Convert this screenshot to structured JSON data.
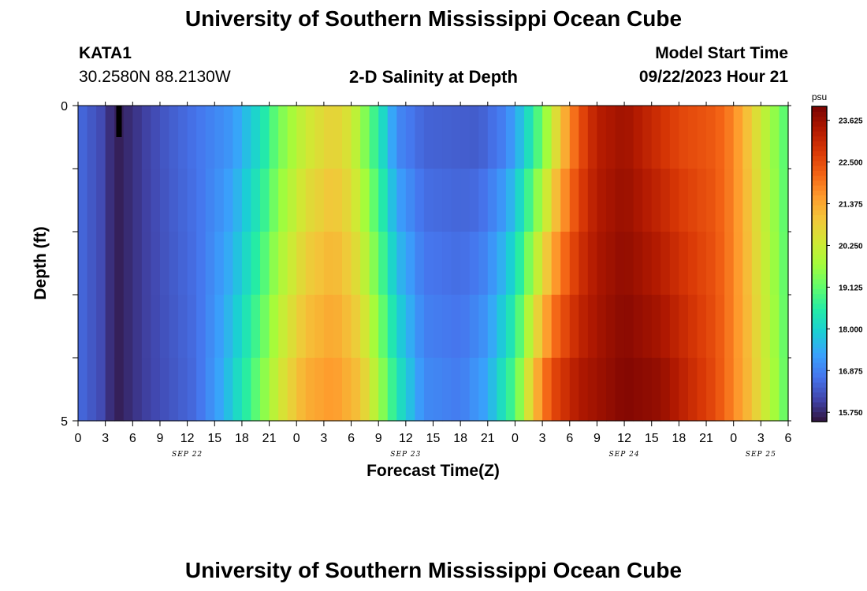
{
  "page": {
    "title_top": "University of Southern Mississippi Ocean Cube",
    "title_bottom": "University of Southern Mississippi Ocean Cube"
  },
  "station": {
    "id": "KATA1",
    "coords": "30.2580N  88.2130W"
  },
  "model": {
    "label": "Model Start Time",
    "start": "09/22/2023 Hour 21"
  },
  "chart_data": {
    "type": "heatmap",
    "title": "2-D Salinity at Depth",
    "xlabel": "Forecast Time(Z)",
    "ylabel": "Depth (ft)",
    "colorbar_unit": "psu",
    "colorbar_ticks": [
      "15.750",
      "16.875",
      "18.000",
      "19.125",
      "20.250",
      "21.375",
      "22.500",
      "23.625"
    ],
    "color_range": [
      15.5,
      24.0
    ],
    "colormap": [
      "#30123b",
      "#4145ab",
      "#4675ed",
      "#39a2fc",
      "#1bcfd4",
      "#24eca6",
      "#61fc6c",
      "#a4fc3b",
      "#d1e834",
      "#f3c63a",
      "#fe9b2d",
      "#f36315",
      "#d93806",
      "#b11901",
      "#7a0402"
    ],
    "x_tick_labels": [
      "0",
      "3",
      "6",
      "9",
      "12",
      "15",
      "18",
      "21",
      "0",
      "3",
      "6",
      "9",
      "12",
      "15",
      "18",
      "21",
      "0",
      "3",
      "6",
      "9",
      "12",
      "15",
      "18",
      "21",
      "0",
      "3",
      "6"
    ],
    "x_range_hours": [
      0,
      78
    ],
    "date_labels": [
      {
        "label": "SEP 22",
        "hour": 12
      },
      {
        "label": "SEP 23",
        "hour": 36
      },
      {
        "label": "SEP 24",
        "hour": 60
      },
      {
        "label": "SEP 25",
        "hour": 75
      }
    ],
    "y_tick_labels": [
      "0",
      "5"
    ],
    "ylim": [
      0,
      5
    ],
    "depth_levels_ft": [
      0,
      1,
      2,
      3,
      4
    ],
    "marker": {
      "hour": 4.5,
      "depth_from_ft": 0,
      "depth_to_ft": 0.5
    },
    "surface_salinity_keypoints": [
      {
        "hour": 0,
        "psu": 16.6
      },
      {
        "hour": 3,
        "psu": 16.1
      },
      {
        "hour": 4,
        "psu": 15.6
      },
      {
        "hour": 7,
        "psu": 16.0
      },
      {
        "hour": 10,
        "psu": 16.4
      },
      {
        "hour": 13,
        "psu": 16.7
      },
      {
        "hour": 17,
        "psu": 17.2
      },
      {
        "hour": 20,
        "psu": 18.2
      },
      {
        "hour": 22,
        "psu": 19.3
      },
      {
        "hour": 25,
        "psu": 20.3
      },
      {
        "hour": 28,
        "psu": 20.8
      },
      {
        "hour": 30,
        "psu": 20.4
      },
      {
        "hour": 33,
        "psu": 18.5
      },
      {
        "hour": 35,
        "psu": 17.0
      },
      {
        "hour": 38,
        "psu": 16.5
      },
      {
        "hour": 44,
        "psu": 16.4
      },
      {
        "hour": 47,
        "psu": 16.9
      },
      {
        "hour": 49,
        "psu": 17.9
      },
      {
        "hour": 51,
        "psu": 19.3
      },
      {
        "hour": 53,
        "psu": 21.0
      },
      {
        "hour": 55,
        "psu": 22.4
      },
      {
        "hour": 57,
        "psu": 23.3
      },
      {
        "hour": 60,
        "psu": 23.6
      },
      {
        "hour": 63,
        "psu": 23.1
      },
      {
        "hour": 66,
        "psu": 22.6
      },
      {
        "hour": 70,
        "psu": 22.3
      },
      {
        "hour": 72,
        "psu": 21.8
      },
      {
        "hour": 74,
        "psu": 20.8
      },
      {
        "hour": 76,
        "psu": 19.8
      },
      {
        "hour": 78,
        "psu": 18.9
      }
    ],
    "bottom_salinity_keypoints": [
      {
        "hour": 0,
        "psu": 16.6
      },
      {
        "hour": 3,
        "psu": 16.1
      },
      {
        "hour": 4,
        "psu": 15.6
      },
      {
        "hour": 7,
        "psu": 16.0
      },
      {
        "hour": 10,
        "psu": 16.3
      },
      {
        "hour": 13,
        "psu": 16.6
      },
      {
        "hour": 16,
        "psu": 17.5
      },
      {
        "hour": 19,
        "psu": 18.8
      },
      {
        "hour": 22,
        "psu": 20.3
      },
      {
        "hour": 25,
        "psu": 21.3
      },
      {
        "hour": 28,
        "psu": 21.6
      },
      {
        "hour": 31,
        "psu": 21.0
      },
      {
        "hour": 33,
        "psu": 19.8
      },
      {
        "hour": 35,
        "psu": 18.4
      },
      {
        "hour": 38,
        "psu": 17.0
      },
      {
        "hour": 42,
        "psu": 16.8
      },
      {
        "hour": 45,
        "psu": 17.4
      },
      {
        "hour": 48,
        "psu": 19.0
      },
      {
        "hour": 50,
        "psu": 21.0
      },
      {
        "hour": 52,
        "psu": 22.5
      },
      {
        "hour": 55,
        "psu": 23.4
      },
      {
        "hour": 60,
        "psu": 23.9
      },
      {
        "hour": 64,
        "psu": 23.7
      },
      {
        "hour": 67,
        "psu": 23.1
      },
      {
        "hour": 70,
        "psu": 22.5
      },
      {
        "hour": 72,
        "psu": 21.8
      },
      {
        "hour": 74,
        "psu": 21.0
      },
      {
        "hour": 76,
        "psu": 20.0
      },
      {
        "hour": 78,
        "psu": 19.0
      }
    ]
  }
}
